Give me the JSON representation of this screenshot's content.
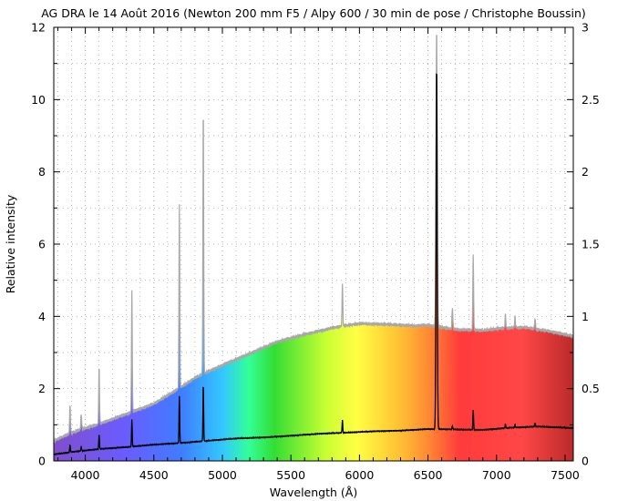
{
  "chart_data": {
    "type": "line",
    "title": "AG DRA le 14 Août 2016 (Newton 200 mm F5 / Alpy 600 / 30 min de pose / Christophe Boussin)",
    "xlabel": "Wavelength (Å)",
    "ylabel": "Relative intensity",
    "xlim": [
      3770,
      7560
    ],
    "ylim": [
      0,
      12
    ],
    "y2lim": [
      0,
      3
    ],
    "x_ticks": [
      4000,
      4500,
      5000,
      5500,
      6000,
      6500,
      7000,
      7500
    ],
    "y_ticks": [
      0,
      2,
      4,
      6,
      8,
      10,
      12
    ],
    "y2_ticks": [
      0,
      0.5,
      1,
      1.5,
      2,
      2.5,
      3
    ],
    "y2_tick_labels": [
      "0",
      "0.5",
      "1",
      "1.5",
      "2",
      "2.5",
      "3"
    ],
    "grid": true,
    "series": [
      {
        "role": "spectrum-scaled-right-axis",
        "style": "rainbow-filled area with gray outline",
        "continuum": [
          [
            3770,
            0.55
          ],
          [
            3850,
            0.7
          ],
          [
            3950,
            0.85
          ],
          [
            4100,
            1.02
          ],
          [
            4300,
            1.3
          ],
          [
            4500,
            1.58
          ],
          [
            4700,
            2.05
          ],
          [
            4800,
            2.3
          ],
          [
            4900,
            2.48
          ],
          [
            5000,
            2.65
          ],
          [
            5200,
            2.97
          ],
          [
            5400,
            3.3
          ],
          [
            5600,
            3.5
          ],
          [
            5800,
            3.68
          ],
          [
            5900,
            3.75
          ],
          [
            6000,
            3.8
          ],
          [
            6200,
            3.78
          ],
          [
            6400,
            3.74
          ],
          [
            6500,
            3.76
          ],
          [
            6700,
            3.64
          ],
          [
            6900,
            3.61
          ],
          [
            7000,
            3.66
          ],
          [
            7200,
            3.7
          ],
          [
            7400,
            3.58
          ],
          [
            7560,
            3.45
          ]
        ],
        "lines": [
          [
            3889,
            0.8
          ],
          [
            3970,
            0.45
          ],
          [
            4101,
            1.6
          ],
          [
            4340,
            3.35
          ],
          [
            4686,
            5.1
          ],
          [
            4861,
            7.45
          ],
          [
            5876,
            1.15
          ],
          [
            6563,
            8.3
          ],
          [
            6678,
            0.6
          ],
          [
            6830,
            2.1
          ],
          [
            7065,
            0.4
          ],
          [
            7135,
            0.3
          ],
          [
            7281,
            0.3
          ]
        ]
      },
      {
        "role": "spectrum-left-axis",
        "style": "black line",
        "continuum": [
          [
            3770,
            0.18
          ],
          [
            3850,
            0.22
          ],
          [
            3950,
            0.27
          ],
          [
            4100,
            0.33
          ],
          [
            4300,
            0.38
          ],
          [
            4500,
            0.45
          ],
          [
            4700,
            0.5
          ],
          [
            4900,
            0.56
          ],
          [
            5100,
            0.62
          ],
          [
            5300,
            0.65
          ],
          [
            5500,
            0.7
          ],
          [
            5700,
            0.75
          ],
          [
            5900,
            0.78
          ],
          [
            6100,
            0.82
          ],
          [
            6300,
            0.84
          ],
          [
            6500,
            0.88
          ],
          [
            6700,
            0.87
          ],
          [
            6900,
            0.86
          ],
          [
            7100,
            0.92
          ],
          [
            7300,
            0.95
          ],
          [
            7560,
            0.91
          ]
        ],
        "lines": [
          [
            3889,
            0.2
          ],
          [
            3970,
            0.12
          ],
          [
            4101,
            0.4
          ],
          [
            4340,
            0.75
          ],
          [
            4686,
            1.3
          ],
          [
            4861,
            1.6
          ],
          [
            5876,
            0.35
          ],
          [
            6563,
            10.1
          ],
          [
            6678,
            0.1
          ],
          [
            6830,
            0.55
          ],
          [
            7065,
            0.1
          ],
          [
            7135,
            0.08
          ],
          [
            7281,
            0.1
          ]
        ]
      }
    ],
    "rainbow_colors": [
      "#7f4fd0",
      "#6a5cff",
      "#3f7dff",
      "#33c8ff",
      "#33ff99",
      "#33dd33",
      "#c8ff33",
      "#ffff44",
      "#ffbb33",
      "#ff8833",
      "#ff3b3b",
      "#ff4747",
      "#bb2a2a"
    ],
    "colors": {
      "spectrum_outline": "#a8a8a8",
      "spectrum_black": "#000000",
      "grid": "#9a9a9a"
    }
  }
}
